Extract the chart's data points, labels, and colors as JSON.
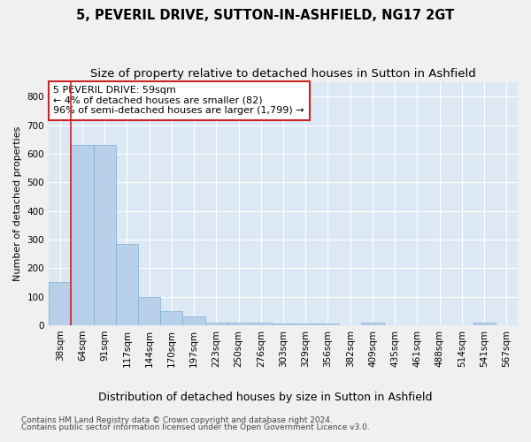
{
  "title1": "5, PEVERIL DRIVE, SUTTON-IN-ASHFIELD, NG17 2GT",
  "title2": "Size of property relative to detached houses in Sutton in Ashfield",
  "xlabel": "Distribution of detached houses by size in Sutton in Ashfield",
  "ylabel": "Number of detached properties",
  "footnote1": "Contains HM Land Registry data © Crown copyright and database right 2024.",
  "footnote2": "Contains public sector information licensed under the Open Government Licence v3.0.",
  "annotation_title": "5 PEVERIL DRIVE: 59sqm",
  "annotation_line2": "← 4% of detached houses are smaller (82)",
  "annotation_line3": "96% of semi-detached houses are larger (1,799) →",
  "bar_values": [
    150,
    630,
    630,
    285,
    100,
    48,
    30,
    10,
    10,
    8,
    7,
    5,
    5,
    0,
    8,
    0,
    0,
    0,
    0,
    8,
    0
  ],
  "categories": [
    "38sqm",
    "64sqm",
    "91sqm",
    "117sqm",
    "144sqm",
    "170sqm",
    "197sqm",
    "223sqm",
    "250sqm",
    "276sqm",
    "303sqm",
    "329sqm",
    "356sqm",
    "382sqm",
    "409sqm",
    "435sqm",
    "461sqm",
    "488sqm",
    "514sqm",
    "541sqm",
    "567sqm"
  ],
  "bar_color": "#b8d0ea",
  "bar_edge_color": "#7aaed4",
  "highlight_color": "#cc2222",
  "ylim": [
    0,
    850
  ],
  "yticks": [
    0,
    100,
    200,
    300,
    400,
    500,
    600,
    700,
    800
  ],
  "background_color": "#dde8f5",
  "fig_background": "#f0f0f0",
  "grid_color": "#ffffff",
  "title1_fontsize": 10.5,
  "title2_fontsize": 9.5,
  "xlabel_fontsize": 9,
  "ylabel_fontsize": 8,
  "tick_fontsize": 7.5,
  "annotation_fontsize": 8,
  "footnote_fontsize": 6.5
}
